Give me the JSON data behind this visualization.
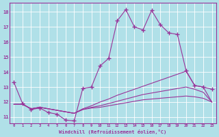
{
  "background_color": "#b0e0e8",
  "grid_color": "#ffffff",
  "line_color": "#993399",
  "marker": "+",
  "markersize": 4,
  "linewidth": 0.8,
  "xlabel": "Windchill (Refroidissement éolien,°C)",
  "ylabel_ticks": [
    11,
    12,
    13,
    14,
    15,
    16,
    17,
    18
  ],
  "xlim": [
    -0.5,
    23.5
  ],
  "ylim": [
    10.6,
    18.6
  ],
  "xtick_labels": [
    "0",
    "1",
    "2",
    "3",
    "4",
    "5",
    "6",
    "7",
    "8",
    "9",
    "10",
    "11",
    "12",
    "13",
    "14",
    "15",
    "16",
    "17",
    "18",
    "19",
    "20",
    "21",
    "22",
    "23"
  ],
  "series": [
    {
      "x": [
        0,
        1,
        2,
        3,
        4,
        5,
        6,
        7,
        8,
        9,
        10,
        11,
        12,
        13,
        14,
        15,
        16,
        17,
        18,
        19,
        20,
        21,
        22,
        23
      ],
      "y": [
        13.3,
        11.9,
        11.5,
        11.6,
        11.3,
        11.2,
        10.8,
        10.75,
        12.9,
        13.0,
        14.4,
        14.9,
        17.4,
        18.15,
        17.0,
        16.8,
        18.1,
        17.15,
        16.6,
        16.5,
        14.1,
        13.1,
        13.0,
        12.85
      ],
      "has_marker": true
    },
    {
      "x": [
        0,
        1,
        2,
        3,
        4,
        5,
        6,
        7,
        8,
        9,
        10,
        11,
        12,
        13,
        14,
        15,
        16,
        17,
        18,
        19,
        20,
        21,
        22,
        23
      ],
      "y": [
        11.85,
        11.85,
        11.55,
        11.65,
        11.55,
        11.45,
        11.35,
        11.25,
        11.55,
        11.75,
        12.0,
        12.2,
        12.45,
        12.65,
        12.85,
        13.05,
        13.25,
        13.45,
        13.65,
        13.85,
        14.05,
        13.1,
        13.0,
        12.0
      ],
      "has_marker": false
    },
    {
      "x": [
        0,
        1,
        2,
        3,
        4,
        5,
        6,
        7,
        8,
        9,
        10,
        11,
        12,
        13,
        14,
        15,
        16,
        17,
        18,
        19,
        20,
        21,
        22,
        23
      ],
      "y": [
        11.85,
        11.85,
        11.55,
        11.65,
        11.55,
        11.45,
        11.35,
        11.25,
        11.5,
        11.65,
        11.75,
        11.9,
        12.05,
        12.2,
        12.35,
        12.5,
        12.6,
        12.7,
        12.8,
        12.9,
        13.0,
        12.85,
        12.65,
        12.0
      ],
      "has_marker": false
    },
    {
      "x": [
        0,
        1,
        2,
        3,
        4,
        5,
        6,
        7,
        8,
        9,
        10,
        11,
        12,
        13,
        14,
        15,
        16,
        17,
        18,
        19,
        20,
        21,
        22,
        23
      ],
      "y": [
        11.85,
        11.85,
        11.55,
        11.65,
        11.55,
        11.45,
        11.35,
        11.25,
        11.5,
        11.6,
        11.65,
        11.75,
        11.85,
        11.95,
        12.05,
        12.15,
        12.2,
        12.25,
        12.3,
        12.35,
        12.4,
        12.35,
        12.25,
        12.0
      ],
      "has_marker": false
    }
  ]
}
